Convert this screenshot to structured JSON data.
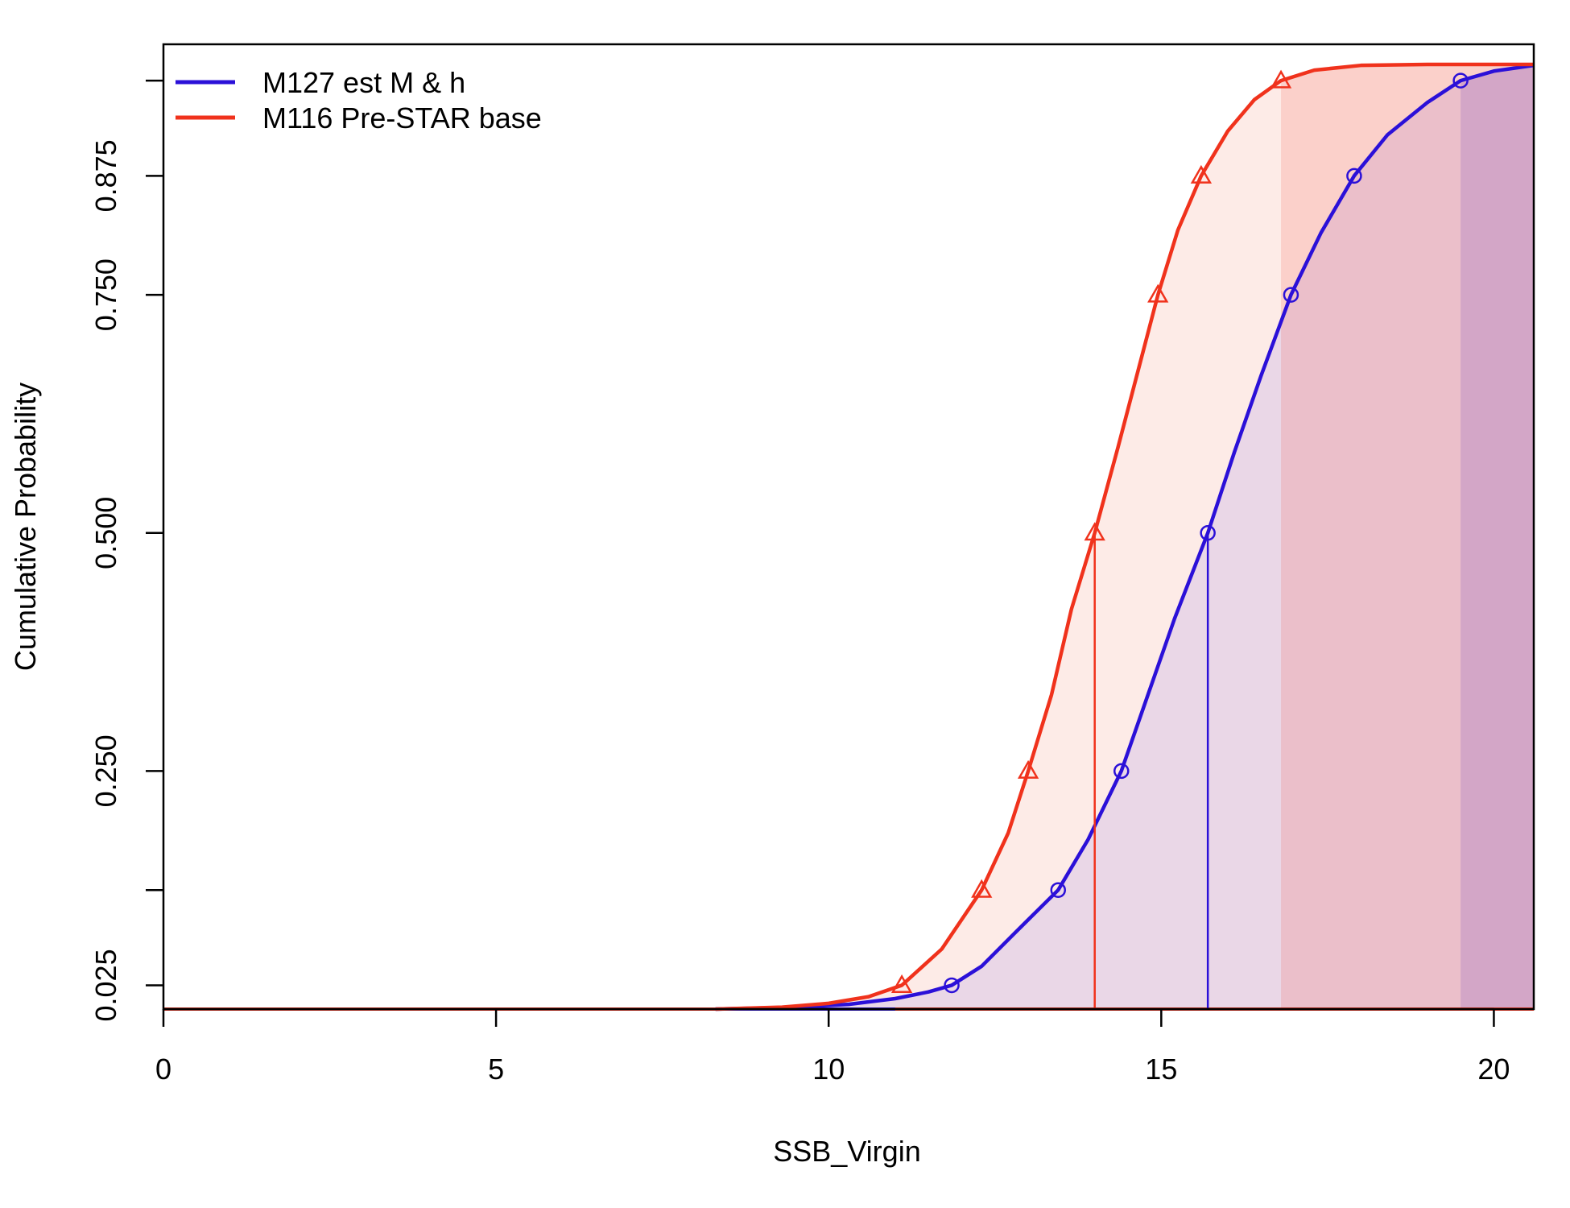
{
  "chart_data": {
    "type": "line",
    "xlabel": "SSB_Virgin",
    "ylabel": "Cumulative Probability",
    "xlim": [
      0,
      20.6
    ],
    "ylim": [
      0.0,
      0.992
    ],
    "xticks": [
      0,
      5,
      10,
      15,
      20
    ],
    "yticks": [
      0.025,
      0.25,
      0.5,
      0.75,
      0.875
    ],
    "ytick_labels": [
      "0.025",
      "0.250",
      "0.500",
      "0.750",
      "0.875"
    ],
    "extra_yticks": [
      0.125,
      0.975
    ],
    "legend_position": "top-left",
    "grid": false,
    "series": [
      {
        "name": "M127 est M & h",
        "color": "#2b10d8",
        "fill_color": "#e6d4e6",
        "marker": "circle",
        "median": 15.7,
        "quantile_points": [
          {
            "x": 11.85,
            "y": 0.025
          },
          {
            "x": 13.45,
            "y": 0.125
          },
          {
            "x": 14.4,
            "y": 0.25
          },
          {
            "x": 15.7,
            "y": 0.5
          },
          {
            "x": 16.95,
            "y": 0.75
          },
          {
            "x": 17.9,
            "y": 0.875
          },
          {
            "x": 19.5,
            "y": 0.975
          }
        ],
        "curve": [
          [
            8.3,
            0.0
          ],
          [
            9.5,
            0.002
          ],
          [
            10.3,
            0.005
          ],
          [
            11.0,
            0.011
          ],
          [
            11.5,
            0.018
          ],
          [
            11.85,
            0.025
          ],
          [
            12.3,
            0.045
          ],
          [
            12.8,
            0.08
          ],
          [
            13.45,
            0.125
          ],
          [
            13.9,
            0.178
          ],
          [
            14.4,
            0.25
          ],
          [
            14.8,
            0.33
          ],
          [
            15.2,
            0.41
          ],
          [
            15.7,
            0.5
          ],
          [
            16.1,
            0.585
          ],
          [
            16.5,
            0.665
          ],
          [
            16.95,
            0.75
          ],
          [
            17.4,
            0.815
          ],
          [
            17.9,
            0.875
          ],
          [
            18.4,
            0.918
          ],
          [
            19.0,
            0.952
          ],
          [
            19.5,
            0.975
          ],
          [
            20.0,
            0.985
          ],
          [
            20.6,
            0.991
          ]
        ]
      },
      {
        "name": "M116 Pre-STAR base",
        "color": "#f0321c",
        "fill_color": "#fde7e3",
        "marker": "triangle",
        "median": 14.0,
        "quantile_points": [
          {
            "x": 11.1,
            "y": 0.025
          },
          {
            "x": 12.3,
            "y": 0.125
          },
          {
            "x": 13.0,
            "y": 0.25
          },
          {
            "x": 14.0,
            "y": 0.5
          },
          {
            "x": 14.95,
            "y": 0.75
          },
          {
            "x": 15.6,
            "y": 0.875
          },
          {
            "x": 16.8,
            "y": 0.975
          }
        ],
        "curve": [
          [
            8.3,
            0.0
          ],
          [
            9.3,
            0.002
          ],
          [
            10.0,
            0.006
          ],
          [
            10.6,
            0.013
          ],
          [
            11.1,
            0.025
          ],
          [
            11.7,
            0.063
          ],
          [
            12.3,
            0.125
          ],
          [
            12.7,
            0.185
          ],
          [
            13.0,
            0.25
          ],
          [
            13.35,
            0.33
          ],
          [
            13.65,
            0.42
          ],
          [
            14.0,
            0.5
          ],
          [
            14.35,
            0.59
          ],
          [
            14.65,
            0.67
          ],
          [
            14.95,
            0.75
          ],
          [
            15.25,
            0.818
          ],
          [
            15.6,
            0.875
          ],
          [
            16.0,
            0.922
          ],
          [
            16.4,
            0.955
          ],
          [
            16.8,
            0.975
          ],
          [
            17.3,
            0.986
          ],
          [
            18.0,
            0.991
          ],
          [
            19.0,
            0.992
          ],
          [
            20.6,
            0.992
          ]
        ]
      }
    ]
  }
}
